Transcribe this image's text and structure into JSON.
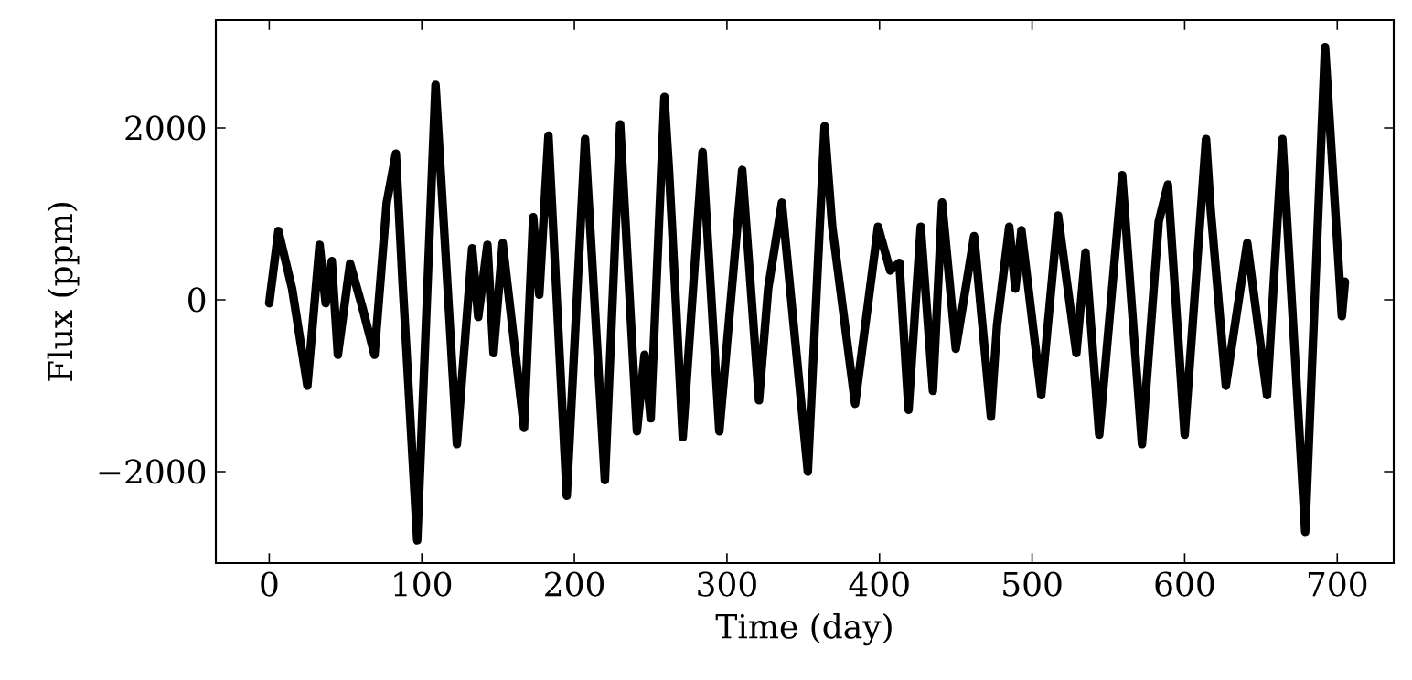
{
  "chart_data": {
    "type": "line",
    "xlabel": "Time (day)",
    "ylabel": "Flux (ppm)",
    "xlim": [
      -35,
      737
    ],
    "ylim": [
      -3064,
      3255
    ],
    "xticks": [
      0,
      100,
      200,
      300,
      400,
      500,
      600,
      700
    ],
    "yticks": [
      {
        "value": -2000,
        "label": "−2000"
      },
      0,
      2000
    ],
    "marker": "none",
    "line_style": "solid",
    "series": [
      {
        "color": "#000000",
        "x": [
          0,
          6,
          15,
          25,
          33,
          37,
          41,
          45,
          53,
          61,
          69,
          77,
          83,
          87.5,
          97,
          109,
          123,
          133,
          137,
          143,
          147,
          153,
          167,
          173,
          177,
          183,
          195,
          207,
          220,
          230,
          241,
          246,
          250,
          259,
          262,
          264,
          271,
          284,
          295,
          310,
          321,
          327,
          336,
          353,
          364,
          369,
          384,
          399,
          407,
          413,
          419,
          427,
          435,
          441,
          450,
          462,
          473,
          477,
          485,
          489,
          493,
          506,
          517,
          529,
          535,
          544,
          559,
          572,
          583,
          589,
          600,
          614,
          617,
          627,
          641,
          654,
          664,
          679,
          692,
          703,
          705
        ],
        "values": [
          -40,
          800,
          130,
          -1000,
          640,
          -40,
          450,
          -640,
          420,
          -85,
          -640,
          1130,
          1700,
          170,
          -2800,
          2500,
          -1680,
          600,
          -200,
          640,
          -620,
          660,
          -1490,
          960,
          60,
          1910,
          -2280,
          1870,
          -2100,
          2040,
          -1530,
          -640,
          -1380,
          2360,
          1510,
          850,
          -1600,
          1720,
          -1530,
          1510,
          -1170,
          130,
          1130,
          -2000,
          2020,
          850,
          -1210,
          850,
          340,
          430,
          -1280,
          850,
          -1060,
          1130,
          -570,
          740,
          -1360,
          -300,
          850,
          130,
          810,
          -1110,
          980,
          -620,
          550,
          -1570,
          1450,
          -1680,
          910,
          1340,
          -1570,
          1870,
          1060,
          -1000,
          660,
          -1110,
          1870,
          -2700,
          2940,
          -190,
          210
        ]
      }
    ]
  }
}
